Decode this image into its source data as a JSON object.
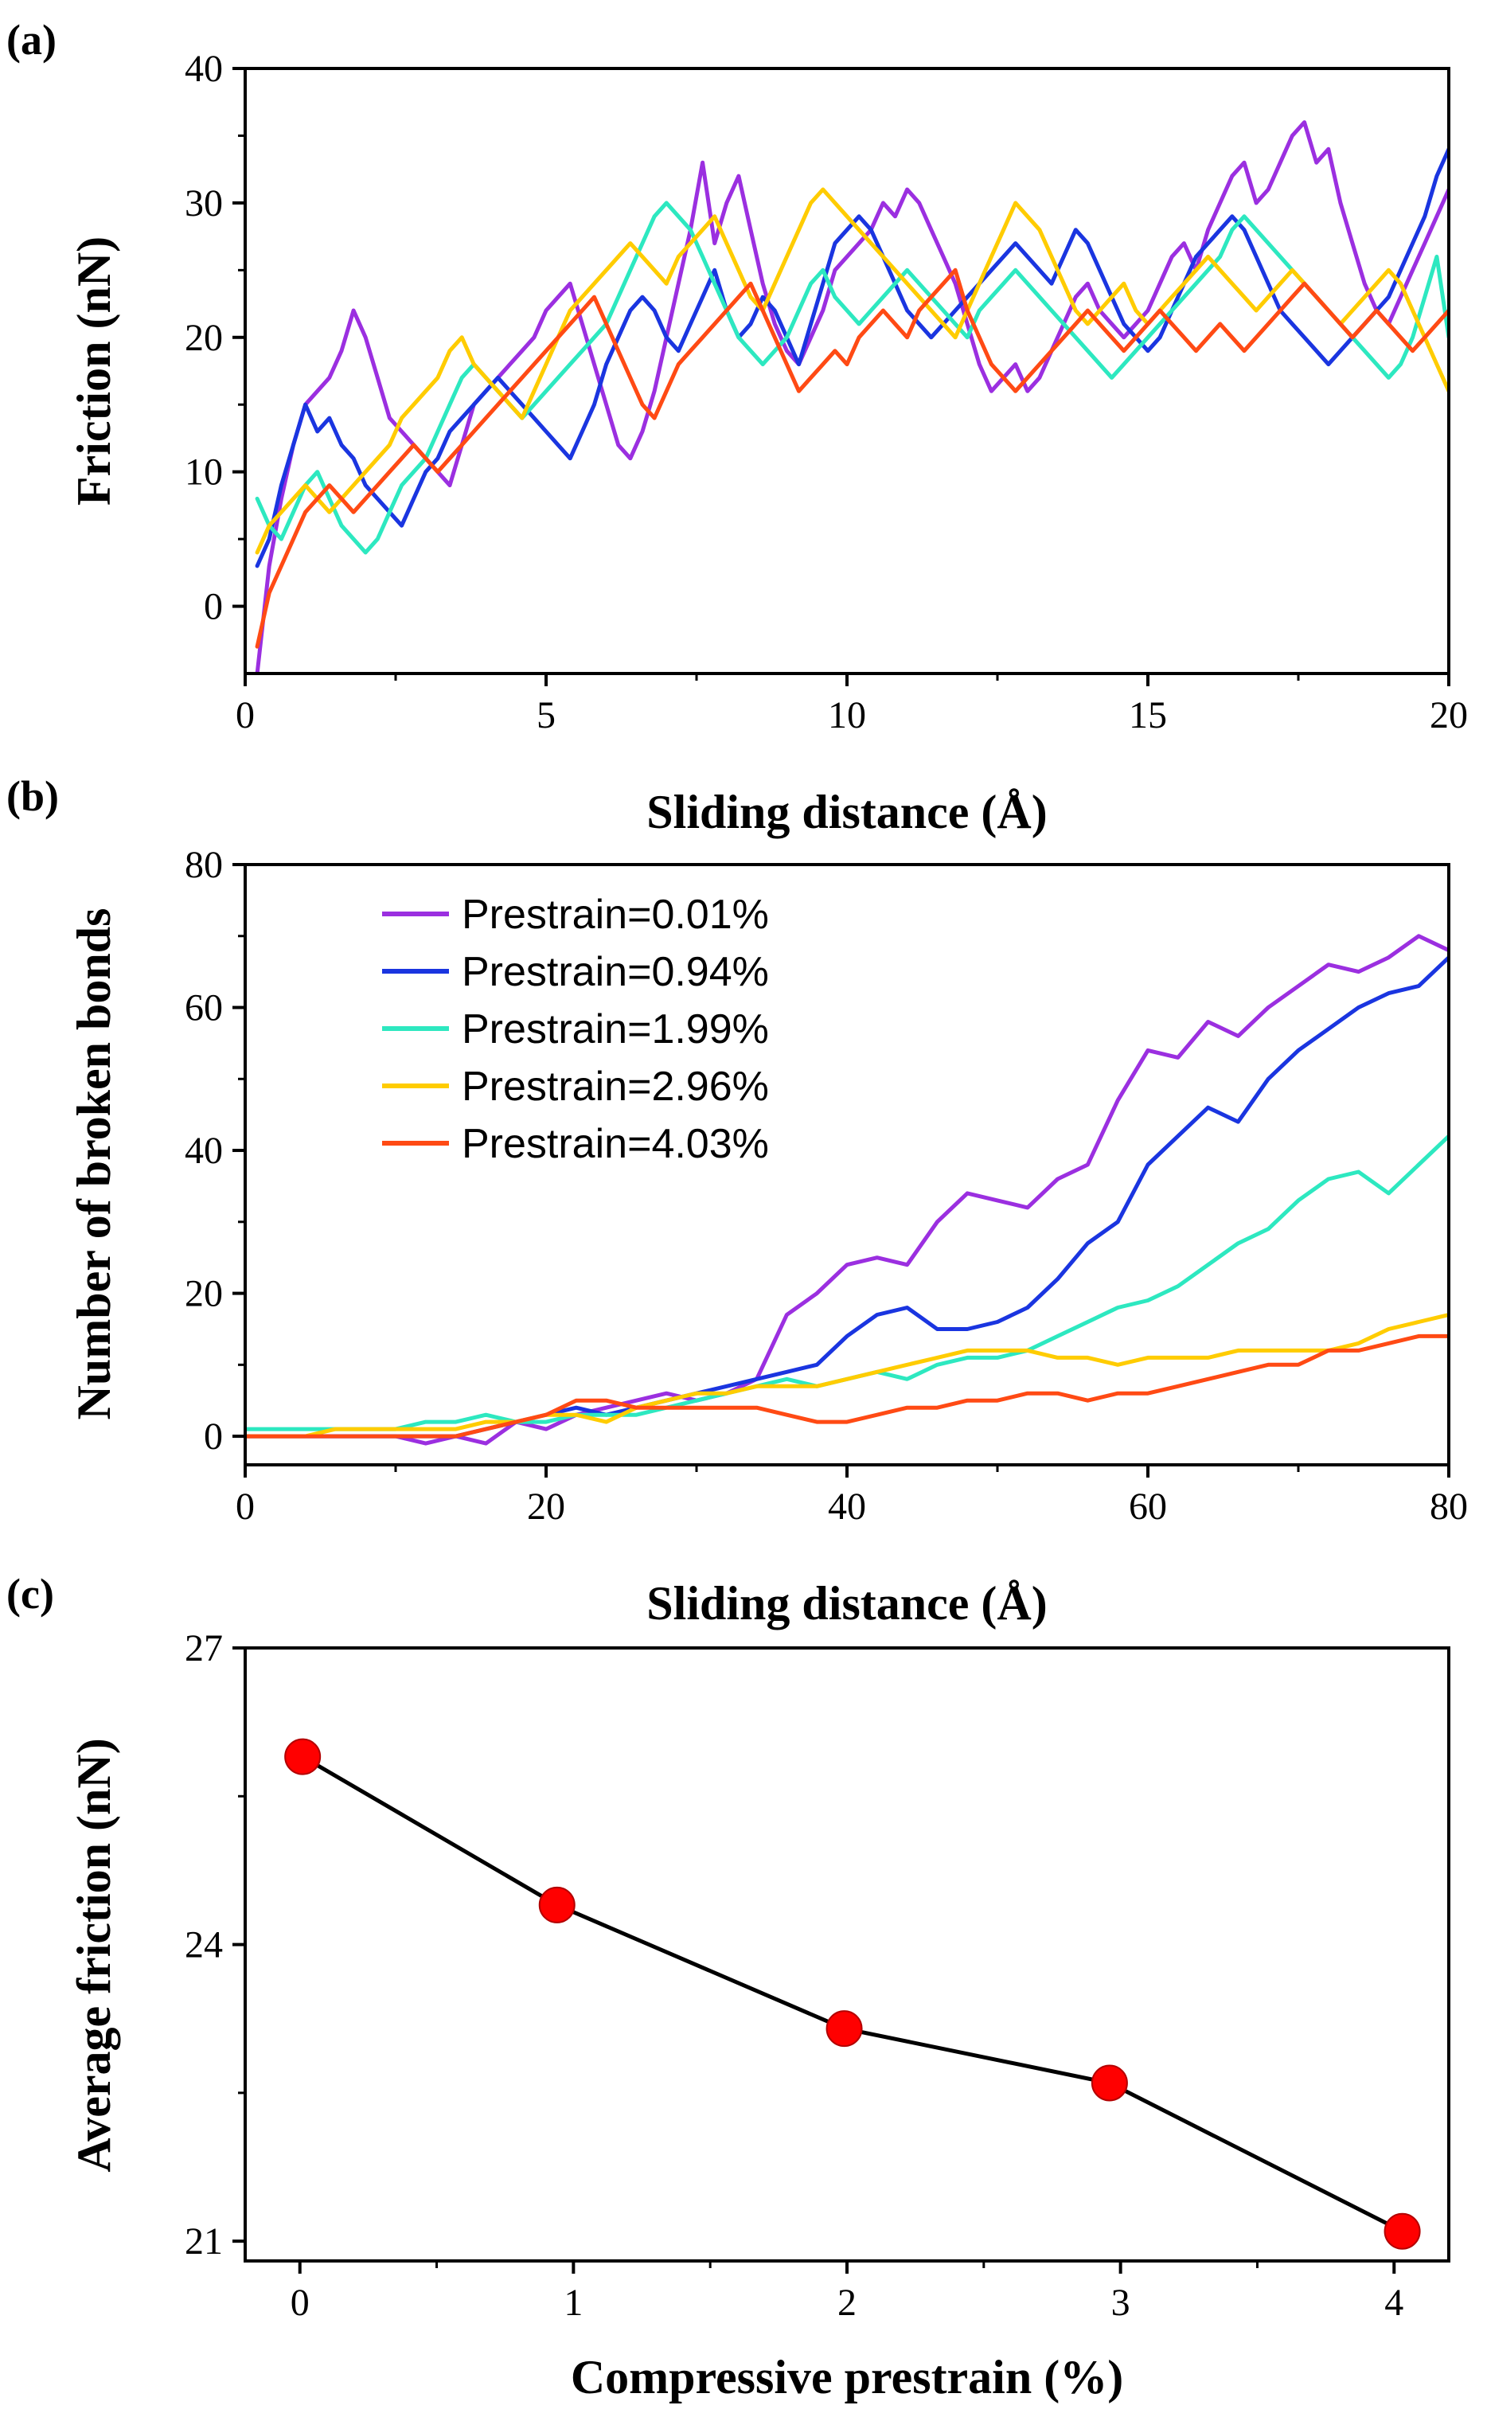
{
  "chart_data": [
    {
      "panel": "(a)",
      "type": "line",
      "xlabel": "Sliding distance (Å)",
      "ylabel": "Friction (nN)",
      "xlim": [
        0,
        20
      ],
      "ylim": [
        -5,
        40
      ],
      "xticks": [
        0,
        5,
        10,
        15,
        20
      ],
      "yticks": [
        0,
        10,
        20,
        30,
        40
      ],
      "x": [
        0.2,
        0.4,
        0.6,
        0.8,
        1.0,
        1.2,
        1.4,
        1.6,
        1.8,
        2.0,
        2.2,
        2.4,
        2.6,
        2.8,
        3.0,
        3.2,
        3.4,
        3.6,
        3.8,
        4.0,
        4.2,
        4.4,
        4.6,
        4.8,
        5.0,
        5.2,
        5.4,
        5.6,
        5.8,
        6.0,
        6.2,
        6.4,
        6.6,
        6.8,
        7.0,
        7.2,
        7.4,
        7.6,
        7.8,
        8.0,
        8.2,
        8.4,
        8.6,
        8.8,
        9.0,
        9.2,
        9.4,
        9.6,
        9.8,
        10.0,
        10.2,
        10.4,
        10.6,
        10.8,
        11.0,
        11.2,
        11.4,
        11.6,
        11.8,
        12.0,
        12.2,
        12.4,
        12.6,
        12.8,
        13.0,
        13.2,
        13.4,
        13.6,
        13.8,
        14.0,
        14.2,
        14.4,
        14.6,
        14.8,
        15.0,
        15.2,
        15.4,
        15.6,
        15.8,
        16.0,
        16.2,
        16.4,
        16.6,
        16.8,
        17.0,
        17.2,
        17.4,
        17.6,
        17.8,
        18.0,
        18.2,
        18.4,
        18.6,
        18.8,
        19.0,
        19.2,
        19.4,
        19.6,
        19.8,
        20.0
      ],
      "series": [
        {
          "name": "Prestrain=0.01%",
          "color": "#9b2fe0",
          "values": [
            -5,
            3,
            8,
            12,
            15,
            16,
            17,
            19,
            22,
            20,
            17,
            14,
            13,
            12,
            11,
            10,
            9,
            12,
            15,
            16,
            17,
            18,
            19,
            20,
            22,
            23,
            24,
            21,
            18,
            15,
            12,
            11,
            13,
            16,
            20,
            24,
            28,
            33,
            27,
            30,
            32,
            28,
            24,
            21,
            19,
            18,
            20,
            22,
            25,
            26,
            27,
            28,
            30,
            29,
            31,
            30,
            28,
            26,
            24,
            21,
            18,
            16,
            17,
            18,
            16,
            17,
            19,
            21,
            23,
            24,
            22,
            21,
            20,
            21,
            22,
            24,
            26,
            27,
            25,
            28,
            30,
            32,
            33,
            30,
            31,
            33,
            35,
            36,
            33,
            34,
            30,
            27,
            24,
            22,
            21,
            23,
            25,
            27,
            29,
            31
          ]
        },
        {
          "name": "Prestrain=0.94%",
          "color": "#1a35e0",
          "values": [
            3,
            5,
            9,
            12,
            15,
            13,
            14,
            12,
            11,
            9,
            8,
            7,
            6,
            8,
            10,
            11,
            13,
            14,
            15,
            16,
            17,
            16,
            15,
            14,
            13,
            12,
            11,
            13,
            15,
            18,
            20,
            22,
            23,
            22,
            20,
            19,
            21,
            23,
            25,
            22,
            20,
            21,
            23,
            22,
            20,
            18,
            21,
            24,
            27,
            28,
            29,
            28,
            26,
            24,
            22,
            21,
            20,
            21,
            22,
            23,
            24,
            25,
            26,
            27,
            26,
            25,
            24,
            26,
            28,
            27,
            25,
            23,
            21,
            20,
            19,
            20,
            22,
            24,
            26,
            27,
            28,
            29,
            28,
            26,
            24,
            22,
            21,
            20,
            19,
            18,
            19,
            20,
            21,
            22,
            23,
            25,
            27,
            29,
            32,
            34
          ]
        },
        {
          "name": "Prestrain=1.99%",
          "color": "#2de8c0",
          "values": [
            8,
            6,
            5,
            7,
            9,
            10,
            8,
            6,
            5,
            4,
            5,
            7,
            9,
            10,
            11,
            13,
            15,
            17,
            18,
            17,
            16,
            15,
            14,
            15,
            16,
            17,
            18,
            19,
            20,
            21,
            23,
            25,
            27,
            29,
            30,
            29,
            28,
            26,
            24,
            22,
            20,
            19,
            18,
            19,
            20,
            22,
            24,
            25,
            23,
            22,
            21,
            22,
            23,
            24,
            25,
            24,
            23,
            22,
            21,
            20,
            22,
            23,
            24,
            25,
            24,
            23,
            22,
            21,
            20,
            19,
            18,
            17,
            18,
            19,
            20,
            21,
            22,
            23,
            24,
            25,
            26,
            28,
            29,
            28,
            27,
            26,
            25,
            24,
            23,
            22,
            21,
            20,
            19,
            18,
            17,
            18,
            20,
            23,
            26,
            20
          ]
        },
        {
          "name": "Prestrain=2.96%",
          "color": "#ffcc00",
          "values": [
            4,
            6,
            7,
            8,
            9,
            8,
            7,
            8,
            9,
            10,
            11,
            12,
            14,
            15,
            16,
            17,
            19,
            20,
            18,
            17,
            16,
            15,
            14,
            16,
            18,
            20,
            22,
            23,
            24,
            25,
            26,
            27,
            26,
            25,
            24,
            26,
            27,
            28,
            29,
            27,
            25,
            23,
            22,
            24,
            26,
            28,
            30,
            31,
            30,
            29,
            28,
            27,
            26,
            25,
            24,
            23,
            22,
            21,
            20,
            22,
            24,
            26,
            28,
            30,
            29,
            28,
            26,
            24,
            22,
            21,
            22,
            23,
            24,
            22,
            21,
            22,
            23,
            24,
            25,
            26,
            25,
            24,
            23,
            22,
            23,
            24,
            25,
            24,
            23,
            22,
            21,
            22,
            23,
            24,
            25,
            24,
            22,
            20,
            18,
            16
          ]
        },
        {
          "name": "Prestrain=4.03%",
          "color": "#ff4a14",
          "values": [
            -3,
            1,
            3,
            5,
            7,
            8,
            9,
            8,
            7,
            8,
            9,
            10,
            11,
            12,
            11,
            10,
            11,
            12,
            13,
            14,
            15,
            16,
            17,
            18,
            19,
            20,
            21,
            22,
            23,
            21,
            19,
            17,
            15,
            14,
            16,
            18,
            19,
            20,
            21,
            22,
            23,
            24,
            22,
            20,
            18,
            16,
            17,
            18,
            19,
            18,
            20,
            21,
            22,
            21,
            20,
            22,
            23,
            24,
            25,
            22,
            20,
            18,
            17,
            16,
            17,
            18,
            19,
            20,
            21,
            22,
            21,
            20,
            19,
            20,
            21,
            22,
            21,
            20,
            19,
            20,
            21,
            20,
            19,
            20,
            21,
            22,
            23,
            24,
            23,
            22,
            21,
            20,
            21,
            22,
            21,
            20,
            19,
            20,
            21,
            22
          ]
        }
      ]
    },
    {
      "panel": "(b)",
      "type": "line",
      "xlabel": "Sliding distance (Å)",
      "ylabel": "Number of  broken bonds",
      "xlim": [
        0,
        80
      ],
      "ylim": [
        -4,
        80
      ],
      "xticks": [
        0,
        20,
        40,
        60,
        80
      ],
      "yticks": [
        0,
        20,
        40,
        60,
        80
      ],
      "legend": [
        "Prestrain=0.01%",
        "Prestrain=0.94%",
        "Prestrain=1.99%",
        "Prestrain=2.96%",
        "Prestrain=4.03%"
      ],
      "x": [
        0,
        2,
        4,
        6,
        8,
        10,
        12,
        14,
        16,
        18,
        20,
        22,
        24,
        26,
        28,
        30,
        32,
        34,
        36,
        38,
        40,
        42,
        44,
        46,
        48,
        50,
        52,
        54,
        56,
        58,
        60,
        62,
        64,
        66,
        68,
        70,
        72,
        74,
        76,
        78,
        80
      ],
      "series": [
        {
          "name": "Prestrain=0.01%",
          "color": "#9b2fe0",
          "values": [
            0,
            0,
            0,
            0,
            0,
            0,
            -1,
            0,
            -1,
            2,
            1,
            3,
            4,
            5,
            6,
            5,
            6,
            8,
            17,
            20,
            24,
            25,
            24,
            30,
            34,
            33,
            32,
            36,
            38,
            47,
            54,
            53,
            58,
            56,
            60,
            63,
            66,
            65,
            67,
            70,
            68
          ]
        },
        {
          "name": "Prestrain=0.94%",
          "color": "#1a35e0",
          "values": [
            0,
            0,
            0,
            0,
            0,
            0,
            0,
            0,
            1,
            2,
            3,
            4,
            3,
            4,
            5,
            6,
            7,
            8,
            9,
            10,
            14,
            17,
            18,
            15,
            15,
            16,
            18,
            22,
            27,
            30,
            38,
            42,
            46,
            44,
            50,
            54,
            57,
            60,
            62,
            63,
            67
          ]
        },
        {
          "name": "Prestrain=1.99%",
          "color": "#2de8c0",
          "values": [
            1,
            1,
            1,
            1,
            1,
            1,
            2,
            2,
            3,
            2,
            2,
            3,
            3,
            3,
            4,
            5,
            6,
            7,
            8,
            7,
            8,
            9,
            8,
            10,
            11,
            11,
            12,
            14,
            16,
            18,
            19,
            21,
            24,
            27,
            29,
            33,
            36,
            37,
            34,
            38,
            42
          ]
        },
        {
          "name": "Prestrain=2.96%",
          "color": "#ffcc00",
          "values": [
            0,
            0,
            0,
            1,
            1,
            1,
            1,
            1,
            2,
            2,
            3,
            3,
            2,
            4,
            5,
            6,
            6,
            7,
            7,
            7,
            8,
            9,
            10,
            11,
            12,
            12,
            12,
            11,
            11,
            10,
            11,
            11,
            11,
            12,
            12,
            12,
            12,
            13,
            15,
            16,
            17
          ]
        },
        {
          "name": "Prestrain=4.03%",
          "color": "#ff4a14",
          "values": [
            0,
            0,
            0,
            0,
            0,
            0,
            0,
            0,
            1,
            2,
            3,
            5,
            5,
            4,
            4,
            4,
            4,
            4,
            3,
            2,
            2,
            3,
            4,
            4,
            5,
            5,
            6,
            6,
            5,
            6,
            6,
            7,
            8,
            9,
            10,
            10,
            12,
            12,
            13,
            14,
            14
          ]
        }
      ]
    },
    {
      "panel": "(c)",
      "type": "line",
      "xlabel": "Compressive prestrain (%)",
      "ylabel": "Average friction (nN)",
      "xlim": [
        -0.2,
        4.2
      ],
      "ylim": [
        20.8,
        27
      ],
      "xticks": [
        0,
        1,
        2,
        3,
        4
      ],
      "yticks": [
        21,
        24,
        27
      ],
      "x": [
        0.01,
        0.94,
        1.99,
        2.96,
        4.03
      ],
      "values": [
        25.9,
        24.4,
        23.15,
        22.6,
        21.1
      ],
      "line_color": "#000000",
      "marker_color": "#ff0000"
    }
  ]
}
